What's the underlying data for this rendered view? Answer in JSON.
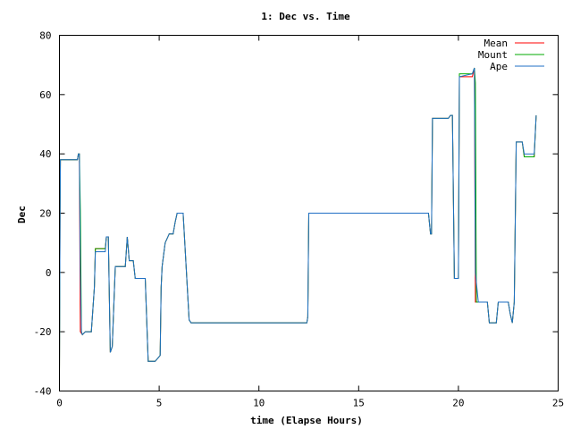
{
  "chart_data": {
    "type": "line",
    "title": "1: Dec vs. Time",
    "xlabel": "time (Elapse Hours)",
    "ylabel": "Dec",
    "xlim": [
      0,
      25
    ],
    "ylim": [
      -40,
      80
    ],
    "xticks": [
      0,
      5,
      10,
      15,
      20,
      25
    ],
    "yticks": [
      -40,
      -20,
      0,
      20,
      40,
      60,
      80
    ],
    "grid": false,
    "legend_position": "top-right",
    "series": [
      {
        "name": "Mean",
        "color": "#ff0000",
        "points": [
          [
            0,
            -36
          ],
          [
            0.03,
            20
          ],
          [
            0.05,
            38
          ],
          [
            0.9,
            38
          ],
          [
            0.95,
            40
          ],
          [
            1.0,
            40
          ],
          [
            1.05,
            -20
          ],
          [
            1.15,
            -21
          ],
          [
            1.3,
            -20
          ],
          [
            1.5,
            -20
          ],
          [
            1.6,
            -20
          ],
          [
            1.75,
            -5
          ],
          [
            1.8,
            8
          ],
          [
            2.0,
            8
          ],
          [
            2.3,
            8
          ],
          [
            2.35,
            12
          ],
          [
            2.45,
            12
          ],
          [
            2.55,
            -27
          ],
          [
            2.65,
            -25
          ],
          [
            2.8,
            2
          ],
          [
            3.3,
            2
          ],
          [
            3.4,
            12
          ],
          [
            3.5,
            4
          ],
          [
            3.7,
            4
          ],
          [
            3.8,
            -2
          ],
          [
            4.3,
            -2
          ],
          [
            4.45,
            -30
          ],
          [
            4.8,
            -30
          ],
          [
            5.05,
            -28
          ],
          [
            5.1,
            -5
          ],
          [
            5.15,
            2
          ],
          [
            5.3,
            10
          ],
          [
            5.5,
            13
          ],
          [
            5.7,
            13
          ],
          [
            5.8,
            17
          ],
          [
            5.9,
            20
          ],
          [
            6.2,
            20
          ],
          [
            6.5,
            -16
          ],
          [
            6.6,
            -17
          ],
          [
            12.4,
            -17
          ],
          [
            12.45,
            -15
          ],
          [
            12.5,
            20
          ],
          [
            18.5,
            20
          ],
          [
            18.6,
            13
          ],
          [
            18.65,
            13
          ],
          [
            18.7,
            52
          ],
          [
            19.4,
            52
          ],
          [
            19.5,
            52
          ],
          [
            19.6,
            53
          ],
          [
            19.7,
            53
          ],
          [
            19.8,
            -2
          ],
          [
            20.0,
            -2
          ],
          [
            20.05,
            66
          ],
          [
            20.7,
            66
          ],
          [
            20.8,
            69
          ],
          [
            20.85,
            -10
          ],
          [
            21.0,
            -10
          ],
          [
            21.45,
            -10
          ],
          [
            21.55,
            -17
          ],
          [
            21.9,
            -17
          ],
          [
            22.0,
            -10
          ],
          [
            22.5,
            -10
          ],
          [
            22.6,
            -14
          ],
          [
            22.7,
            -17
          ],
          [
            22.8,
            -10
          ],
          [
            22.9,
            44
          ],
          [
            23.2,
            44
          ],
          [
            23.3,
            39
          ],
          [
            23.8,
            39
          ],
          [
            23.9,
            53
          ]
        ]
      },
      {
        "name": "Mount",
        "color": "#00aa00",
        "points": [
          [
            0,
            -36
          ],
          [
            0.03,
            20
          ],
          [
            0.05,
            38
          ],
          [
            0.9,
            38
          ],
          [
            0.95,
            40
          ],
          [
            1.0,
            40
          ],
          [
            1.05,
            21
          ],
          [
            1.1,
            -20
          ],
          [
            1.15,
            -21
          ],
          [
            1.3,
            -20
          ],
          [
            1.5,
            -20
          ],
          [
            1.6,
            -20
          ],
          [
            1.75,
            -5
          ],
          [
            1.8,
            8
          ],
          [
            2.0,
            8
          ],
          [
            2.3,
            8
          ],
          [
            2.35,
            12
          ],
          [
            2.45,
            12
          ],
          [
            2.55,
            -27
          ],
          [
            2.65,
            -25
          ],
          [
            2.8,
            2
          ],
          [
            3.3,
            2
          ],
          [
            3.4,
            12
          ],
          [
            3.5,
            4
          ],
          [
            3.7,
            4
          ],
          [
            3.8,
            -2
          ],
          [
            4.3,
            -2
          ],
          [
            4.45,
            -30
          ],
          [
            4.8,
            -30
          ],
          [
            5.05,
            -28
          ],
          [
            5.1,
            -5
          ],
          [
            5.15,
            2
          ],
          [
            5.3,
            10
          ],
          [
            5.5,
            13
          ],
          [
            5.7,
            13
          ],
          [
            5.8,
            17
          ],
          [
            5.9,
            20
          ],
          [
            6.2,
            20
          ],
          [
            6.5,
            -16
          ],
          [
            6.6,
            -17
          ],
          [
            12.4,
            -17
          ],
          [
            12.45,
            -15
          ],
          [
            12.5,
            20
          ],
          [
            18.5,
            20
          ],
          [
            18.6,
            13
          ],
          [
            18.65,
            13
          ],
          [
            18.7,
            52
          ],
          [
            19.4,
            52
          ],
          [
            19.5,
            52
          ],
          [
            19.6,
            53
          ],
          [
            19.7,
            53
          ],
          [
            19.8,
            -2
          ],
          [
            20.0,
            -2
          ],
          [
            20.05,
            67
          ],
          [
            20.7,
            67
          ],
          [
            20.8,
            69
          ],
          [
            20.85,
            64
          ],
          [
            20.9,
            -10
          ],
          [
            21.0,
            -10
          ],
          [
            21.45,
            -10
          ],
          [
            21.55,
            -17
          ],
          [
            21.9,
            -17
          ],
          [
            22.0,
            -10
          ],
          [
            22.5,
            -10
          ],
          [
            22.6,
            -14
          ],
          [
            22.7,
            -17
          ],
          [
            22.8,
            -10
          ],
          [
            22.9,
            44
          ],
          [
            23.2,
            44
          ],
          [
            23.3,
            39
          ],
          [
            23.8,
            39
          ],
          [
            23.9,
            53
          ]
        ]
      },
      {
        "name": "Ape",
        "color": "#1f6fc4",
        "points": [
          [
            0,
            -36
          ],
          [
            0.03,
            20
          ],
          [
            0.05,
            38
          ],
          [
            0.9,
            38
          ],
          [
            0.95,
            40
          ],
          [
            1.0,
            40
          ],
          [
            1.05,
            0
          ],
          [
            1.1,
            -20
          ],
          [
            1.15,
            -21
          ],
          [
            1.3,
            -20
          ],
          [
            1.5,
            -20
          ],
          [
            1.6,
            -20
          ],
          [
            1.75,
            -5
          ],
          [
            1.8,
            7
          ],
          [
            2.0,
            7
          ],
          [
            2.3,
            7
          ],
          [
            2.35,
            12
          ],
          [
            2.45,
            12
          ],
          [
            2.55,
            -27
          ],
          [
            2.65,
            -25
          ],
          [
            2.8,
            2
          ],
          [
            3.3,
            2
          ],
          [
            3.4,
            12
          ],
          [
            3.5,
            4
          ],
          [
            3.7,
            4
          ],
          [
            3.8,
            -2
          ],
          [
            4.3,
            -2
          ],
          [
            4.45,
            -30
          ],
          [
            4.8,
            -30
          ],
          [
            5.05,
            -28
          ],
          [
            5.1,
            -5
          ],
          [
            5.15,
            2
          ],
          [
            5.3,
            10
          ],
          [
            5.5,
            13
          ],
          [
            5.7,
            13
          ],
          [
            5.8,
            17
          ],
          [
            5.9,
            20
          ],
          [
            6.2,
            20
          ],
          [
            6.5,
            -16
          ],
          [
            6.6,
            -17
          ],
          [
            12.4,
            -17
          ],
          [
            12.45,
            -15
          ],
          [
            12.5,
            20
          ],
          [
            18.5,
            20
          ],
          [
            18.6,
            13
          ],
          [
            18.65,
            13
          ],
          [
            18.7,
            52
          ],
          [
            19.4,
            52
          ],
          [
            19.5,
            52
          ],
          [
            19.6,
            53
          ],
          [
            19.7,
            53
          ],
          [
            19.8,
            -2
          ],
          [
            20.0,
            -2
          ],
          [
            20.05,
            66
          ],
          [
            20.7,
            67
          ],
          [
            20.8,
            69
          ],
          [
            20.85,
            0
          ],
          [
            21.0,
            -10
          ],
          [
            21.45,
            -10
          ],
          [
            21.55,
            -17
          ],
          [
            21.9,
            -17
          ],
          [
            22.0,
            -10
          ],
          [
            22.5,
            -10
          ],
          [
            22.6,
            -14
          ],
          [
            22.7,
            -17
          ],
          [
            22.8,
            -10
          ],
          [
            22.9,
            44
          ],
          [
            23.2,
            44
          ],
          [
            23.3,
            40
          ],
          [
            23.8,
            40
          ],
          [
            23.9,
            53
          ]
        ]
      }
    ]
  }
}
